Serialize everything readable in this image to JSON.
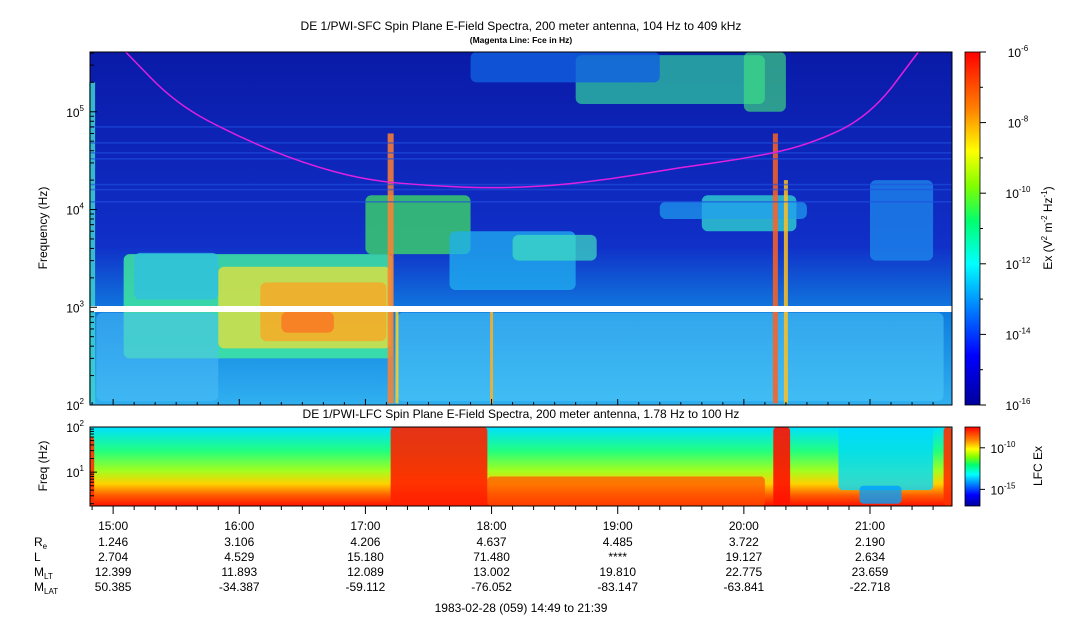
{
  "title": "DE 1/PWI-SFC  Spin Plane E-Field Spectra, 200 meter antenna, 104 Hz to 409 kHz",
  "subtitle": "(Magenta Line: Fce in Hz)",
  "date_label": "1983-02-28 (059) 14:49 to 21:39",
  "colors": {
    "fce_line": "#e020e0",
    "background_low": "#0000c0",
    "gap": "#ffffff"
  },
  "chart_data": [
    {
      "type": "heatmap",
      "title": "DE 1/PWI-SFC  Spin Plane E-Field Spectra, 200 meter antenna, 104 Hz to 409 kHz",
      "subtitle": "(Magenta Line: Fce in Hz)",
      "ylabel": "Frequency (Hz)",
      "yscale": "log",
      "ylim": [
        100,
        409000
      ],
      "y_ticks": [
        {
          "base": "10",
          "exp": "2",
          "value": 100
        },
        {
          "base": "10",
          "exp": "3",
          "value": 1000
        },
        {
          "base": "10",
          "exp": "4",
          "value": 10000
        },
        {
          "base": "10",
          "exp": "5",
          "value": 100000
        }
      ],
      "xlim": [
        "14:49",
        "21:39"
      ],
      "x_ticks": [
        "15:00",
        "16:00",
        "17:00",
        "18:00",
        "19:00",
        "20:00",
        "21:00"
      ],
      "colorbar": {
        "label_main": "Ex (V",
        "label_sup1": "2",
        "label_mid": " m",
        "label_sup2": "-2",
        "label_mid2": " Hz",
        "label_sup3": "-1",
        "label_end": ")",
        "scale": "log",
        "range": [
          1e-16,
          1e-06
        ],
        "ticks": [
          {
            "base": "10",
            "exp": "-6",
            "value": 1e-06
          },
          {
            "base": "10",
            "exp": "-8",
            "value": 1e-08
          },
          {
            "base": "10",
            "exp": "-10",
            "value": 1e-10
          },
          {
            "base": "10",
            "exp": "-12",
            "value": 1e-12
          },
          {
            "base": "10",
            "exp": "-14",
            "value": 1e-14
          },
          {
            "base": "10",
            "exp": "-16",
            "value": 1e-16
          }
        ]
      },
      "fce_line": [
        {
          "t": "15:06",
          "f": 409000
        },
        {
          "t": "15:30",
          "f": 120000
        },
        {
          "t": "16:00",
          "f": 55000
        },
        {
          "t": "16:30",
          "f": 30000
        },
        {
          "t": "17:00",
          "f": 20000
        },
        {
          "t": "17:30",
          "f": 17500
        },
        {
          "t": "18:00",
          "f": 16500
        },
        {
          "t": "18:30",
          "f": 17500
        },
        {
          "t": "19:00",
          "f": 21000
        },
        {
          "t": "19:30",
          "f": 27000
        },
        {
          "t": "20:00",
          "f": 33000
        },
        {
          "t": "20:30",
          "f": 45000
        },
        {
          "t": "21:00",
          "f": 90000
        },
        {
          "t": "21:23",
          "f": 409000
        }
      ],
      "gap_hz": [
        900,
        1100
      ]
    },
    {
      "type": "heatmap",
      "title": "DE 1/PWI-LFC  Spin Plane E-Field Spectra, 200 meter antenna, 1.78 Hz to 100 Hz",
      "ylabel": "Freq (Hz)",
      "yscale": "log",
      "ylim": [
        1.78,
        100
      ],
      "y_ticks": [
        {
          "base": "10",
          "exp": "1",
          "value": 10
        },
        {
          "base": "10",
          "exp": "2",
          "value": 100
        }
      ],
      "xlim": [
        "14:49",
        "21:39"
      ],
      "colorbar": {
        "label": "LFC Ex",
        "scale": "log",
        "ticks": [
          {
            "base": "10",
            "exp": "-10",
            "value": 1e-10
          },
          {
            "base": "10",
            "exp": "-15",
            "value": 1e-15
          }
        ]
      }
    }
  ],
  "ephemeris": {
    "rows": [
      {
        "name": "R",
        "sub": "e",
        "values": [
          "1.246",
          "3.106",
          "4.206",
          "4.637",
          "4.485",
          "3.722",
          "2.190"
        ]
      },
      {
        "name": "L",
        "sub": "",
        "values": [
          "2.704",
          "4.529",
          "15.180",
          "71.480",
          "****",
          "19.127",
          "2.634"
        ]
      },
      {
        "name": "M",
        "sub": "LT",
        "values": [
          "12.399",
          "11.893",
          "12.089",
          "13.002",
          "19.810",
          "22.775",
          "23.659"
        ]
      },
      {
        "name": "M",
        "sub": "LAT",
        "values": [
          "50.385",
          "-34.387",
          "-59.112",
          "-76.052",
          "-83.147",
          "-63.841",
          "-22.718"
        ]
      }
    ]
  }
}
